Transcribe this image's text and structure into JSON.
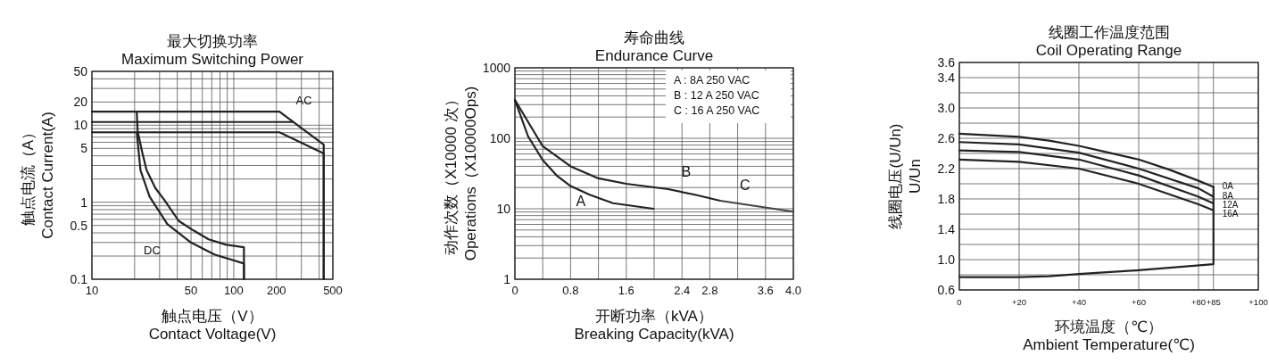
{
  "chart_data": [
    {
      "type": "line",
      "title": "最大切换功率\nMaximum Switching Power",
      "xlabel": "触点电压（V）\nContact Voltage(V)",
      "ylabel": "触点电流（A）\nContact Current(A)",
      "log": "xy",
      "grid": true,
      "xlim": [
        10,
        500
      ],
      "ylim": [
        0.1,
        50
      ],
      "xticks": [
        10,
        {
          "value": 20,
          "label": null
        },
        {
          "value": 30,
          "label": null
        },
        {
          "value": 40,
          "label": null
        },
        50,
        {
          "value": 60,
          "label": null
        },
        {
          "value": 70,
          "label": null
        },
        {
          "value": 80,
          "label": null
        },
        {
          "value": 90,
          "label": null
        },
        100,
        200,
        {
          "value": 300,
          "label": null
        },
        {
          "value": 400,
          "label": null
        },
        500
      ],
      "yticks": [
        0.1,
        {
          "value": 0.2,
          "label": null
        },
        {
          "value": 0.3,
          "label": null
        },
        {
          "value": 0.4,
          "label": null
        },
        0.5,
        {
          "value": 0.6,
          "label": null
        },
        {
          "value": 0.7,
          "label": null
        },
        {
          "value": 0.8,
          "label": null
        },
        {
          "value": 0.9,
          "label": null
        },
        1,
        {
          "value": 2,
          "label": null
        },
        {
          "value": 3,
          "label": null
        },
        {
          "value": 4,
          "label": null
        },
        5,
        {
          "value": 6,
          "label": null
        },
        {
          "value": 7,
          "label": null
        },
        {
          "value": 8,
          "label": null
        },
        {
          "value": 9,
          "label": null
        },
        10,
        20,
        {
          "value": 30,
          "label": null
        },
        {
          "value": 40,
          "label": null
        },
        50
      ],
      "series": [
        {
          "color": "#222222",
          "x": [
            10,
            210,
            431,
            431
          ],
          "values": [
            15,
            15,
            5.6,
            0.1
          ]
        },
        {
          "color": "#222222",
          "x": [
            10,
            263
          ],
          "values": [
            11,
            11
          ]
        },
        {
          "color": "#222222",
          "x": [
            10,
            210,
            431,
            431
          ],
          "values": [
            8.1,
            8.1,
            4.3,
            0.1
          ]
        },
        {
          "color": "#222222",
          "x": [
            20.7,
            21,
            22.6,
            24.3,
            28,
            32.4,
            41,
            52,
            66.5,
            88.7,
            118,
            118
          ],
          "values": [
            15,
            8.4,
            4.5,
            2.6,
            1.53,
            1.07,
            0.57,
            0.43,
            0.33,
            0.28,
            0.26,
            0.1
          ]
        },
        {
          "color": "#222222",
          "x": [
            20.7,
            22,
            25.5,
            34,
            49.9,
            73,
            118,
            118
          ],
          "values": [
            8.1,
            2.6,
            1.18,
            0.52,
            0.3,
            0.21,
            0.16,
            0.1
          ]
        }
      ],
      "annotations": [
        "AC",
        "DC"
      ]
    },
    {
      "type": "line",
      "title": "寿命曲线\nEndurance Curve",
      "xlabel": "开断功率（kVA）\nBreaking Capacity(kVA)",
      "ylabel": "动作次数（X10000 次）\nOperations（X10000Ops)",
      "log": "y",
      "grid": true,
      "xlim": [
        0,
        4.0
      ],
      "ylim": [
        1,
        1000
      ],
      "xticks": [
        0,
        {
          "value": 0.4,
          "label": null
        },
        0.8,
        {
          "value": 1.2,
          "label": null
        },
        1.6,
        {
          "value": 2.0,
          "label": null
        },
        2.4,
        2.8,
        {
          "value": 3.2,
          "label": null
        },
        3.6,
        {
          "value": 4.0,
          "label": "4.0"
        }
      ],
      "yticks": [
        1,
        {
          "value": 2,
          "label": null
        },
        {
          "value": 3,
          "label": null
        },
        {
          "value": 4,
          "label": null
        },
        {
          "value": 5,
          "label": null
        },
        {
          "value": 6,
          "label": null
        },
        {
          "value": 7,
          "label": null
        },
        {
          "value": 8,
          "label": null
        },
        {
          "value": 9,
          "label": null
        },
        10,
        {
          "value": 20,
          "label": null
        },
        {
          "value": 30,
          "label": null
        },
        {
          "value": 40,
          "label": null
        },
        {
          "value": 50,
          "label": null
        },
        {
          "value": 60,
          "label": null
        },
        {
          "value": 70,
          "label": null
        },
        {
          "value": 80,
          "label": null
        },
        {
          "value": 90,
          "label": null
        },
        100,
        {
          "value": 200,
          "label": null
        },
        {
          "value": 300,
          "label": null
        },
        {
          "value": 400,
          "label": null
        },
        {
          "value": 500,
          "label": null
        },
        {
          "value": 600,
          "label": null
        },
        {
          "value": 700,
          "label": null
        },
        {
          "value": 800,
          "label": null
        },
        {
          "value": 900,
          "label": null
        },
        1000
      ],
      "series": [
        {
          "name": "A",
          "color": "#222222",
          "x": [
            0,
            0.19,
            0.4,
            0.61,
            0.8,
            1.08,
            1.41,
            1.99
          ],
          "values": [
            350,
            106,
            49,
            29,
            21,
            15.7,
            12,
            10
          ]
        },
        {
          "name": "B",
          "color": "#222222",
          "x": [
            0,
            0.4,
            0.8,
            1.2,
            1.6,
            2.2,
            2.6,
            2.95
          ],
          "values": [
            350,
            77,
            40,
            27,
            22.6,
            19,
            15.7,
            13
          ]
        },
        {
          "name": "C",
          "color": "#444444",
          "x": [
            2.95,
            4.0
          ],
          "values": [
            13,
            9.1
          ]
        }
      ],
      "annotations": [
        "A : 8A 250 VAC",
        "B : 12 A 250 VAC",
        "C : 16 A 250 VAC"
      ]
    },
    {
      "type": "line",
      "title": "线圈工作温度范围\nCoil Operating Range",
      "xlabel": "环境温度（℃）\nAmbient Temperature(℃)",
      "ylabel": "线圈电压(U/Un)\nU/Un",
      "grid": true,
      "xlim": [
        0,
        100
      ],
      "ylim": [
        0.6,
        3.6
      ],
      "xticks": [
        0,
        {
          "value": 20,
          "label": "+20"
        },
        {
          "value": 40,
          "label": "+40"
        },
        {
          "value": 60,
          "label": "+60"
        },
        {
          "value": 80,
          "label": "+80"
        },
        {
          "value": 85,
          "label": "+85"
        },
        {
          "value": 100,
          "label": "+100"
        }
      ],
      "yticks": [
        {
          "value": 0.6,
          "label": "0.6"
        },
        {
          "value": 0.8,
          "label": null
        },
        {
          "value": 1.0,
          "label": "1.0"
        },
        {
          "value": 1.2,
          "label": null
        },
        {
          "value": 1.4,
          "label": "1.4"
        },
        {
          "value": 1.6,
          "label": null
        },
        {
          "value": 1.8,
          "label": "1.8"
        },
        {
          "value": 2.0,
          "label": null
        },
        {
          "value": 2.2,
          "label": "2.2"
        },
        {
          "value": 2.4,
          "label": null
        },
        {
          "value": 2.6,
          "label": "2.6"
        },
        {
          "value": 2.8,
          "label": null
        },
        {
          "value": 3.0,
          "label": "3.0"
        },
        {
          "value": 3.2,
          "label": null
        },
        {
          "value": 3.4,
          "label": "3.4"
        },
        {
          "value": 3.6,
          "label": "3.6"
        }
      ],
      "series": [
        {
          "name": "0A",
          "color": "#222222",
          "x": [
            0,
            20,
            30,
            40,
            50,
            60,
            70,
            80,
            85
          ],
          "values": [
            2.66,
            2.62,
            2.57,
            2.5,
            2.41,
            2.32,
            2.19,
            2.04,
            1.96
          ]
        },
        {
          "name": "8A",
          "color": "#222222",
          "x": [
            0,
            20,
            40,
            60,
            80,
            85
          ],
          "values": [
            2.55,
            2.52,
            2.41,
            2.2,
            1.94,
            1.83
          ]
        },
        {
          "name": "12A",
          "color": "#222222",
          "x": [
            0,
            20,
            40,
            60,
            80,
            85
          ],
          "values": [
            2.44,
            2.42,
            2.32,
            2.11,
            1.83,
            1.74
          ]
        },
        {
          "name": "16A",
          "color": "#222222",
          "x": [
            0,
            20,
            40,
            60,
            80,
            85
          ],
          "values": [
            2.32,
            2.29,
            2.2,
            2.0,
            1.73,
            1.65
          ]
        },
        {
          "color": "#222222",
          "x": [
            0,
            20,
            30,
            40,
            60,
            85,
            85
          ],
          "values": [
            0.77,
            0.77,
            0.78,
            0.81,
            0.86,
            0.94,
            1.96
          ]
        }
      ]
    }
  ]
}
